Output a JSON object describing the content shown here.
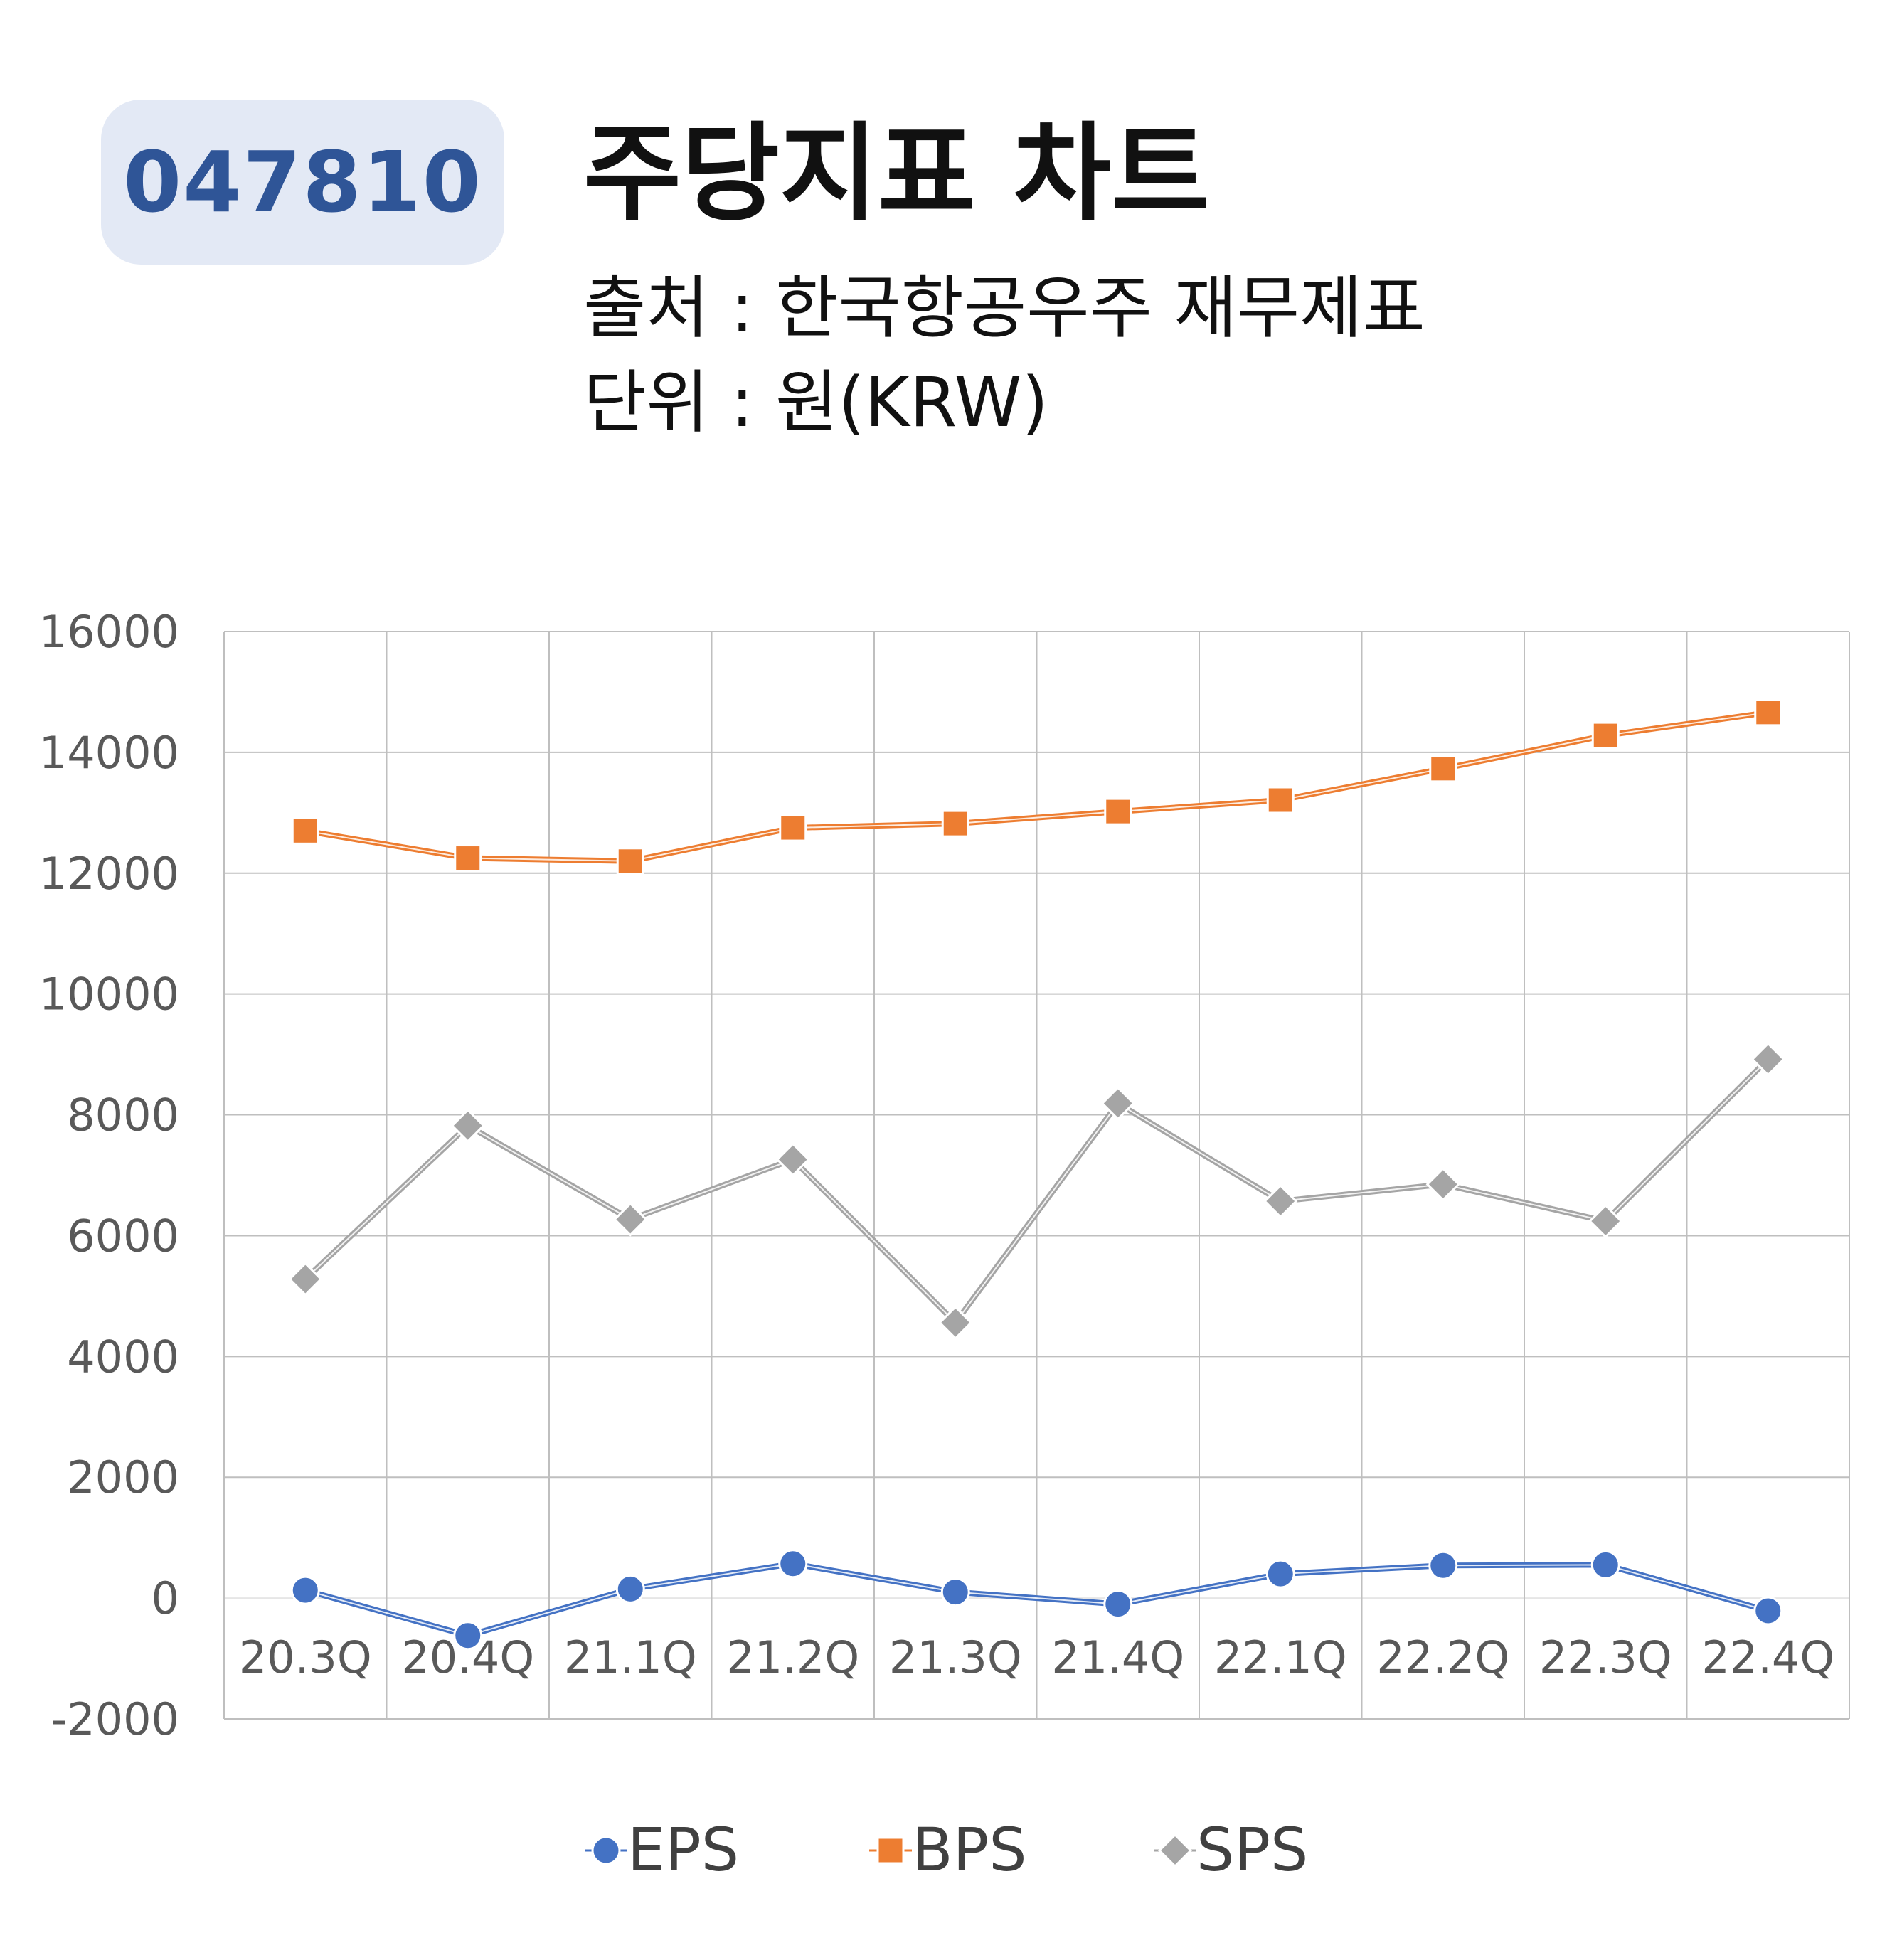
{
  "header": {
    "code": "047810",
    "title": "주당지표 차트",
    "source": "출처 : 한국항공우주 재무제표",
    "unit": "단위 : 원(KRW)"
  },
  "colors": {
    "eps": "#4472c4",
    "bps": "#ed7d31",
    "sps": "#a5a5a5",
    "grid": "#bfbfbf",
    "badge_bg": "#e3e9f5",
    "badge_text": "#2f5597"
  },
  "chart_data": {
    "type": "line",
    "categories": [
      "20.3Q",
      "20.4Q",
      "21.1Q",
      "21.2Q",
      "21.3Q",
      "21.4Q",
      "22.1Q",
      "22.2Q",
      "22.3Q",
      "22.4Q"
    ],
    "series": [
      {
        "name": "EPS",
        "marker": "circle",
        "values": [
          130,
          -620,
          150,
          570,
          100,
          -100,
          400,
          540,
          550,
          -210
        ]
      },
      {
        "name": "BPS",
        "marker": "square",
        "values": [
          12700,
          12250,
          12200,
          12750,
          12820,
          13020,
          13210,
          13730,
          14280,
          14660
        ]
      },
      {
        "name": "SPS",
        "marker": "diamond",
        "values": [
          5280,
          7820,
          6270,
          7260,
          4560,
          8190,
          6570,
          6850,
          6240,
          8920
        ]
      }
    ],
    "ylim": [
      -2000,
      16000
    ],
    "yticks": [
      "16000",
      "14000",
      "12000",
      "10000",
      "8000",
      "6000",
      "4000",
      "2000",
      "0",
      "-2000"
    ],
    "grid": true,
    "legend_position": "bottom"
  }
}
